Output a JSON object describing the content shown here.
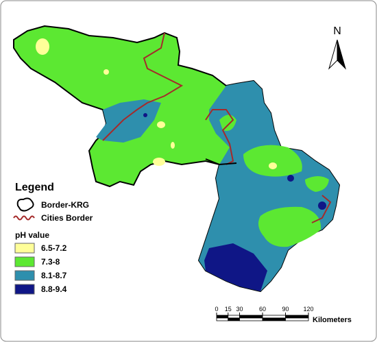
{
  "north": "N",
  "legend": {
    "title": "Legend",
    "items": [
      {
        "label": "Border-KRG"
      },
      {
        "label": "Cities Border"
      }
    ],
    "ph": {
      "title": "pH value",
      "classes": [
        {
          "label": "6.5-7.2",
          "color": "#ffff99"
        },
        {
          "label": "7.3-8",
          "color": "#5ce832"
        },
        {
          "label": "8.1-8.7",
          "color": "#2e8fad"
        },
        {
          "label": "8.8-9.4",
          "color": "#0f1686"
        }
      ]
    }
  },
  "scale_bar": {
    "ticks": [
      0,
      15,
      30,
      60,
      90,
      120
    ],
    "unit": "Kilometers"
  }
}
